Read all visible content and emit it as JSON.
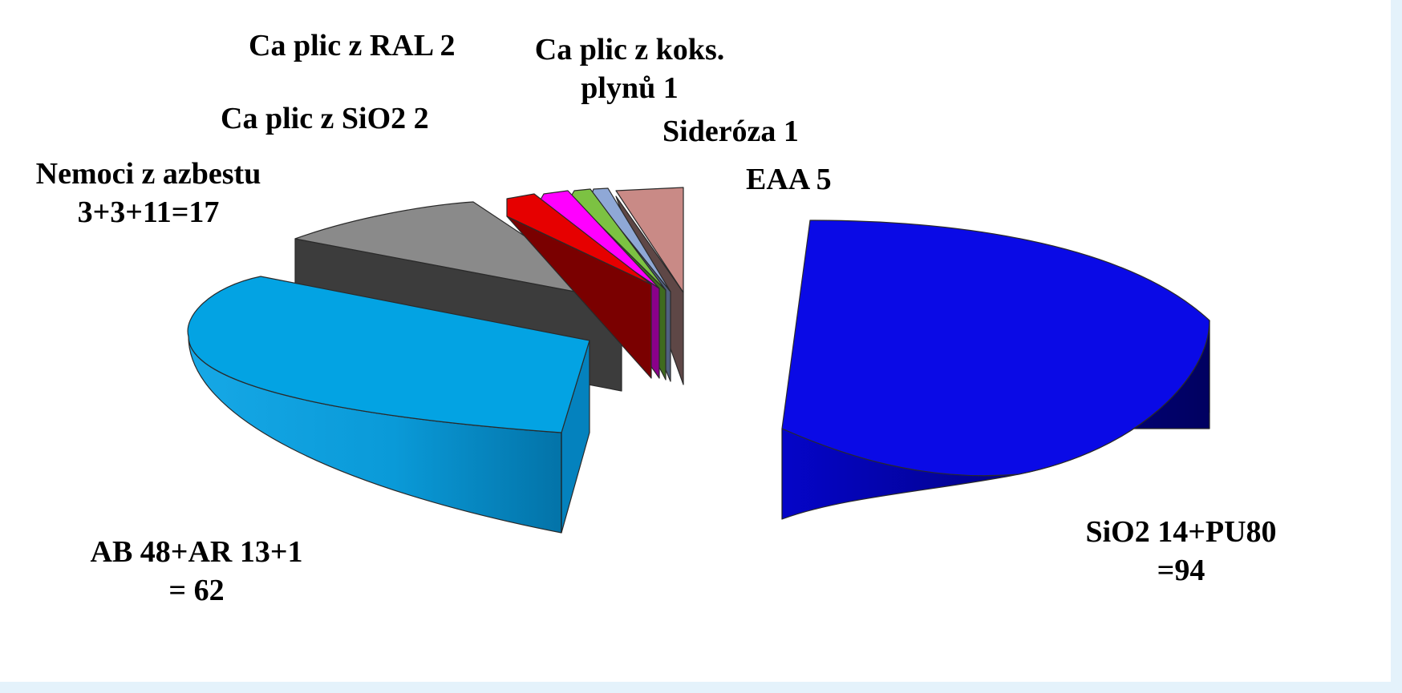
{
  "chart_data": {
    "type": "pie",
    "style": "3d-exploded",
    "slices": [
      {
        "id": "sio2",
        "value": 94,
        "color": "#0a0ae6",
        "side_color": "#03039a",
        "label_lines": [
          "SiO2 14+PU80",
          "=94"
        ]
      },
      {
        "id": "ab",
        "value": 62,
        "color": "#03a3e3",
        "side_color": "#0488c6",
        "label_lines": [
          "AB 48+AR 13+1",
          "= 62"
        ]
      },
      {
        "id": "azbest",
        "value": 17,
        "color": "#8a8a8a",
        "side_color": "#3c3c3c",
        "label_lines": [
          "Nemoci z azbestu",
          "3+3+11=17"
        ]
      },
      {
        "id": "ca-sio2",
        "value": 2,
        "color": "#e60000",
        "side_color": "#7a0000",
        "label_lines": [
          "Ca plic  z SiO2  2"
        ]
      },
      {
        "id": "ca-ral",
        "value": 2,
        "color": "#ff00ff",
        "side_color": "#8a008a",
        "label_lines": [
          "Ca plic  z RAL 2"
        ]
      },
      {
        "id": "ca-koks",
        "value": 1,
        "color": "#7cc242",
        "side_color": "#3f6b1f",
        "label_lines": [
          "Ca plic  z koks.",
          "plynů  1"
        ]
      },
      {
        "id": "sideroza",
        "value": 1,
        "color": "#8fa8d6",
        "side_color": "#506080",
        "label_lines": [
          "Sideróza  1"
        ]
      },
      {
        "id": "eaa",
        "value": 5,
        "color": "#c98a86",
        "side_color": "#5e4746",
        "label_lines": [
          "EAA 5"
        ]
      }
    ]
  }
}
